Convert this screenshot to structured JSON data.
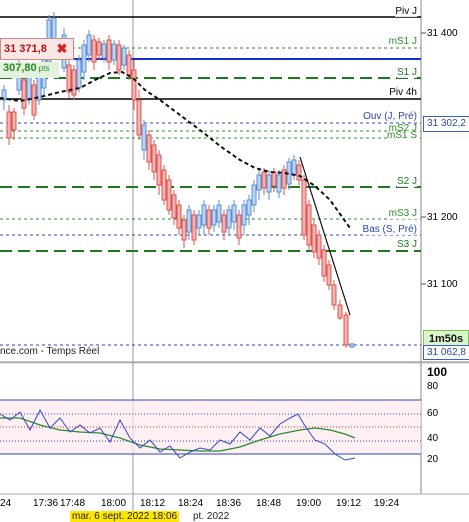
{
  "position": {
    "price": "31 371,8",
    "close_icon": "close-icon",
    "pnl": "307,80",
    "pnl_unit": "pts"
  },
  "source": "nce.com - Temps Réel",
  "timer": "1m50s",
  "last_price": "31 062,8",
  "open_price_tag": "31 302,2",
  "price_axis": [
    "31 400",
    "31 200",
    "31 100"
  ],
  "rsi_axis": [
    "100",
    "80",
    "60",
    "40",
    "20"
  ],
  "time_axis": [
    "24",
    "17:36",
    "17:48",
    "18:00",
    "18:12",
    "18:24",
    "18:36",
    "18:48",
    "19:00",
    "19:12",
    "19:24"
  ],
  "date_tag": "mar. 6 sept. 2022 18:06",
  "date_tag_tail": "pt. 2022",
  "levels": [
    {
      "name": "Piv J",
      "color": "#000000"
    },
    {
      "name": "mS1 J",
      "color": "#2e8b2e"
    },
    {
      "name": "S1 J",
      "color": "#1f7a1f"
    },
    {
      "name": "Piv 4h",
      "color": "#000000"
    },
    {
      "name": "Ouv (J, Pré)",
      "color": "#2b46b9"
    },
    {
      "name": "mS2 J",
      "color": "#2e8b2e"
    },
    {
      "name": "mS1 S",
      "color": "#2e8b2e"
    },
    {
      "name": "S2 J",
      "color": "#1f7a1f"
    },
    {
      "name": "mS3 J",
      "color": "#2e8b2e"
    },
    {
      "name": "Bas (S, Pré)",
      "color": "#2b46b9"
    },
    {
      "name": "S3 J",
      "color": "#1f7a1f"
    }
  ]
}
